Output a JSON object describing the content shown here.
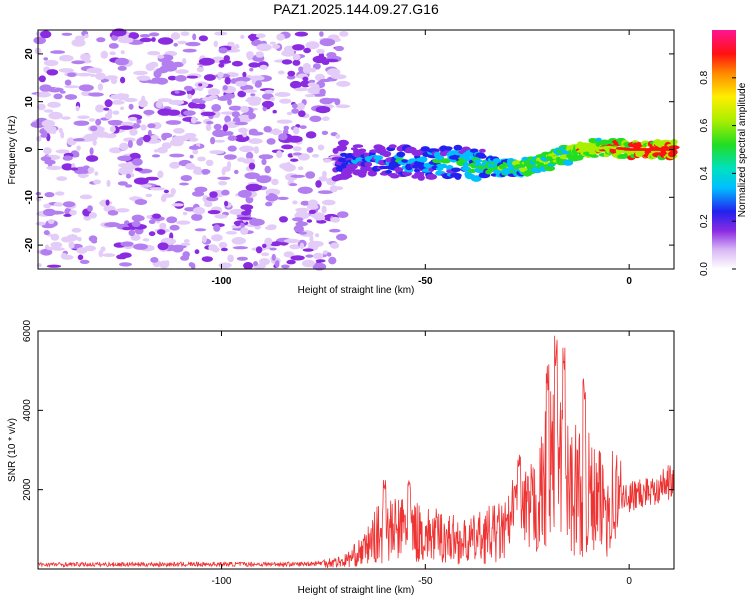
{
  "title": "PAZ1.2025.144.09.27.G16",
  "chart_data": [
    {
      "type": "heatmap",
      "xlabel": "Height of straight line (km)",
      "ylabel": "Frequency (Hz)",
      "xlim": [
        -145,
        11
      ],
      "ylim": [
        -25,
        25
      ],
      "xticks": [
        -100,
        -50,
        0
      ],
      "yticks": [
        -20,
        -10,
        0,
        10,
        20
      ],
      "colorbar": {
        "label": "Normalized spectral amplitude",
        "range": [
          0.0,
          1.0
        ],
        "ticks": [
          "0.0",
          "0.2",
          "0.4",
          "0.6",
          "0.8"
        ],
        "colormap": "rainbow (white-purple-blue-cyan-green-yellow-red-magenta)"
      },
      "signal_track": {
        "x": [
          -72,
          -65,
          -60,
          -55,
          -50,
          -45,
          -40,
          -35,
          -30,
          -25,
          -20,
          -15,
          -10,
          -5,
          0,
          5,
          10
        ],
        "y": [
          -3,
          -2,
          -2.5,
          -2.5,
          -3,
          -2.5,
          -3,
          -3.5,
          -4,
          -3.5,
          -2.5,
          -1,
          0,
          0.5,
          0,
          0,
          0
        ]
      }
    },
    {
      "type": "line",
      "xlabel": "Height of straight line (km)",
      "ylabel": "SNR (10 * v/v)",
      "xlim": [
        -145,
        11
      ],
      "ylim": [
        0,
        6000
      ],
      "xticks": [
        -100,
        -50,
        0
      ],
      "yticks": [
        2000,
        4000,
        6000
      ],
      "series_color": "#ee3333",
      "envelope": {
        "x": [
          -145,
          -80,
          -70,
          -65,
          -62,
          -55,
          -50,
          -45,
          -40,
          -35,
          -30,
          -28,
          -25,
          -22,
          -20,
          -18,
          -15,
          -10,
          -8,
          -5,
          0,
          5,
          10
        ],
        "y": [
          120,
          130,
          200,
          500,
          900,
          1100,
          900,
          850,
          700,
          900,
          1000,
          1500,
          1400,
          1800,
          2500,
          2800,
          2200,
          2000,
          1700,
          1800,
          1900,
          2100,
          2300
        ]
      },
      "peaks": [
        {
          "x": -60,
          "y": 2350
        },
        {
          "x": -54,
          "y": 2300
        },
        {
          "x": -28,
          "y": 2100
        },
        {
          "x": -27,
          "y": 3000
        },
        {
          "x": -20,
          "y": 5300
        },
        {
          "x": -18,
          "y": 6000
        },
        {
          "x": -16,
          "y": 5600
        },
        {
          "x": -11,
          "y": 4800
        },
        {
          "x": 10,
          "y": 2700
        }
      ]
    }
  ]
}
